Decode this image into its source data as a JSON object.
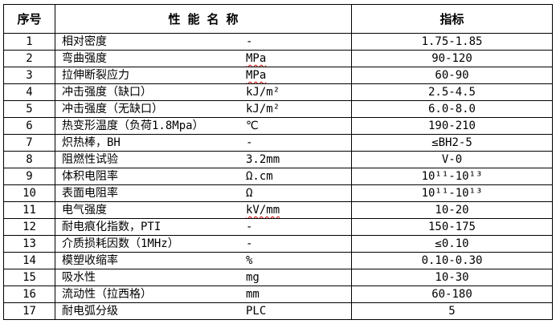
{
  "colors": {
    "background": "#ffffff",
    "border": "#000000",
    "text": "#000000",
    "spellcheck_underline": "#cc0000"
  },
  "table": {
    "headers": {
      "no": "序号",
      "name": "性 能 名 称",
      "index": "指标"
    },
    "rows": [
      {
        "no": "1",
        "name": "相对密度",
        "unit": "-",
        "unit_misspelled": false,
        "value": "1.75-1.85"
      },
      {
        "no": "2",
        "name": "弯曲强度",
        "unit": "MPa",
        "unit_misspelled": true,
        "value": "90-120"
      },
      {
        "no": "3",
        "name": "拉伸断裂应力",
        "unit": "MPa",
        "unit_misspelled": true,
        "value": "60-90"
      },
      {
        "no": "4",
        "name": "冲击强度（缺口）",
        "unit": "kJ/m²",
        "unit_misspelled": false,
        "value": "2.5-4.5"
      },
      {
        "no": "5",
        "name": "冲击强度（无缺口）",
        "unit": "kJ/m²",
        "unit_misspelled": false,
        "value": "6.0-8.0"
      },
      {
        "no": "6",
        "name": "热变形温度（负荷1.8Mpa）",
        "unit": "℃",
        "unit_misspelled": false,
        "value": "190-210"
      },
      {
        "no": "7",
        "name": "炽热棒，BH",
        "unit": "-",
        "unit_misspelled": false,
        "value": "≤BH2-5"
      },
      {
        "no": "8",
        "name": "阻燃性试验",
        "unit": "3.2mm",
        "unit_misspelled": false,
        "value": "V-0"
      },
      {
        "no": "9",
        "name": "体积电阻率",
        "unit": "Ω.cm",
        "unit_misspelled": false,
        "value": "10¹¹-10¹³"
      },
      {
        "no": "10",
        "name": "表面电阻率",
        "unit": "Ω",
        "unit_misspelled": false,
        "value": "10¹¹-10¹³"
      },
      {
        "no": "11",
        "name": "电气强度",
        "unit": "kV/mm",
        "unit_misspelled": true,
        "value": "10-20"
      },
      {
        "no": "12",
        "name": "耐电痕化指数，PTI",
        "unit": "-",
        "unit_misspelled": false,
        "value": "150-175"
      },
      {
        "no": "13",
        "name": "介质损耗因数（1MHz）",
        "unit": "-",
        "unit_misspelled": false,
        "value": "≤0.10"
      },
      {
        "no": "14",
        "name": "模塑收缩率",
        "unit": "%",
        "unit_misspelled": false,
        "value": "0.10-0.30"
      },
      {
        "no": "15",
        "name": "吸水性",
        "unit": "mg",
        "unit_misspelled": false,
        "value": "10-30"
      },
      {
        "no": "16",
        "name": "流动性（拉西格）",
        "unit": "mm",
        "unit_misspelled": false,
        "value": "60-180"
      },
      {
        "no": "17",
        "name": "耐电弧分级",
        "unit": "PLC",
        "unit_misspelled": false,
        "value": "5"
      }
    ]
  }
}
